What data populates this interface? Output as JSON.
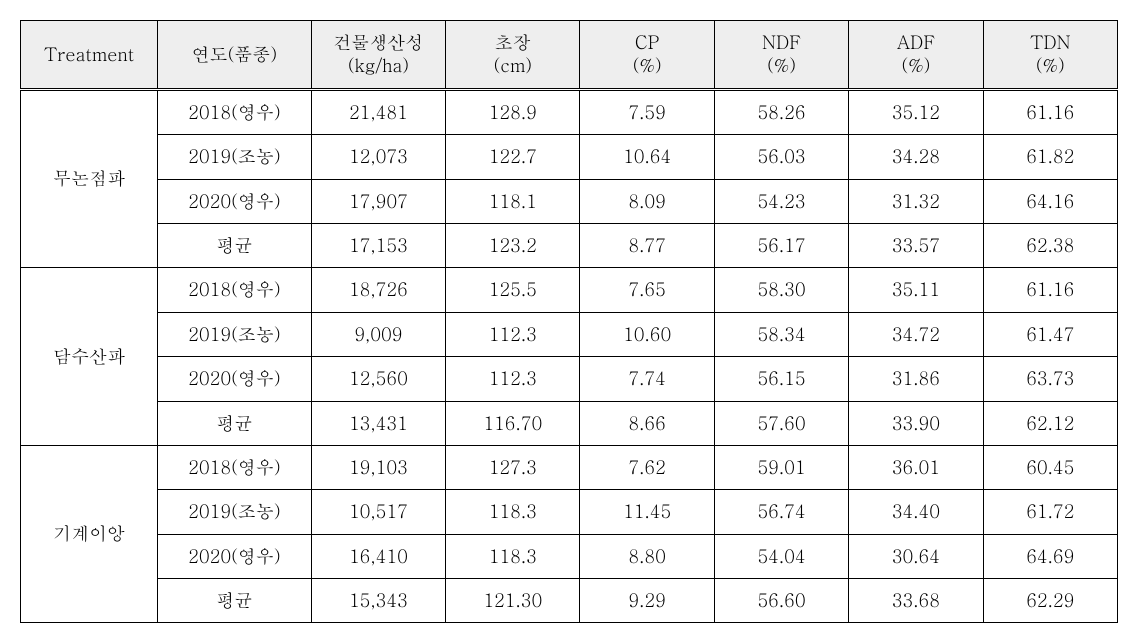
{
  "table": {
    "columns": [
      {
        "label": "Treatment",
        "class": "col-treatment"
      },
      {
        "label": "연도(품종)",
        "class": "col-year"
      },
      {
        "label": "건물생산성\n(kg/ha)",
        "class": "col-data"
      },
      {
        "label": "초장\n(cm)",
        "class": "col-data"
      },
      {
        "label": "CP\n(%)",
        "class": "col-data"
      },
      {
        "label": "NDF\n(%)",
        "class": "col-data"
      },
      {
        "label": "ADF\n(%)",
        "class": "col-data"
      },
      {
        "label": "TDN\n(%)",
        "class": "col-data"
      }
    ],
    "groups": [
      {
        "treatment": "무논점파",
        "rows": [
          {
            "year": "2018(영우)",
            "yield": "21,481",
            "height": "128.9",
            "cp": "7.59",
            "ndf": "58.26",
            "adf": "35.12",
            "tdn": "61.16"
          },
          {
            "year": "2019(조농)",
            "yield": "12,073",
            "height": "122.7",
            "cp": "10.64",
            "ndf": "56.03",
            "adf": "34.28",
            "tdn": "61.82"
          },
          {
            "year": "2020(영우)",
            "yield": "17,907",
            "height": "118.1",
            "cp": "8.09",
            "ndf": "54.23",
            "adf": "31.32",
            "tdn": "64.16"
          },
          {
            "year": "평균",
            "yield": "17,153",
            "height": "123.2",
            "cp": "8.77",
            "ndf": "56.17",
            "adf": "33.57",
            "tdn": "62.38"
          }
        ]
      },
      {
        "treatment": "담수산파",
        "rows": [
          {
            "year": "2018(영우)",
            "yield": "18,726",
            "height": "125.5",
            "cp": "7.65",
            "ndf": "58.30",
            "adf": "35.11",
            "tdn": "61.16"
          },
          {
            "year": "2019(조농)",
            "yield": "9,009",
            "height": "112.3",
            "cp": "10.60",
            "ndf": "58.34",
            "adf": "34.72",
            "tdn": "61.47"
          },
          {
            "year": "2020(영우)",
            "yield": "12,560",
            "height": "112.3",
            "cp": "7.74",
            "ndf": "56.15",
            "adf": "31.86",
            "tdn": "63.73"
          },
          {
            "year": "평균",
            "yield": "13,431",
            "height": "116.70",
            "cp": "8.66",
            "ndf": "57.60",
            "adf": "33.90",
            "tdn": "62.12"
          }
        ]
      },
      {
        "treatment": "기계이앙",
        "rows": [
          {
            "year": "2018(영우)",
            "yield": "19,103",
            "height": "127.3",
            "cp": "7.62",
            "ndf": "59.01",
            "adf": "36.01",
            "tdn": "60.45"
          },
          {
            "year": "2019(조농)",
            "yield": "10,517",
            "height": "118.3",
            "cp": "11.45",
            "ndf": "56.74",
            "adf": "34.40",
            "tdn": "61.72"
          },
          {
            "year": "2020(영우)",
            "yield": "16,410",
            "height": "118.3",
            "cp": "8.80",
            "ndf": "54.04",
            "adf": "30.64",
            "tdn": "64.69"
          },
          {
            "year": "평균",
            "yield": "15,343",
            "height": "121.30",
            "cp": "9.29",
            "ndf": "56.60",
            "adf": "33.68",
            "tdn": "62.29"
          }
        ]
      }
    ]
  }
}
